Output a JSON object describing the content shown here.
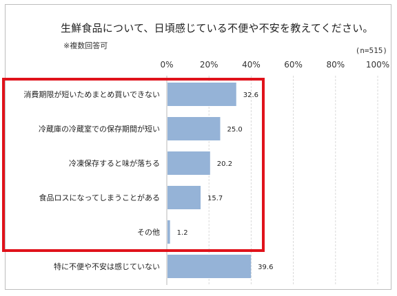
{
  "chart_data": {
    "type": "bar",
    "orientation": "horizontal",
    "title": "生鮮食品について、日頃感じている不便や不安を教えてください。",
    "note": "※複数回答可",
    "sample_size": "(n=515)",
    "categories": [
      "消費期限が短いためまとめ買いできない",
      "冷蔵庫の冷蔵室での保存期間が短い",
      "冷凍保存すると味が落ちる",
      "食品ロスになってしまうことがある",
      "その他",
      "特に不便や不安は感じていない"
    ],
    "values": [
      32.6,
      25.0,
      20.2,
      15.7,
      1.2,
      39.6
    ],
    "value_labels": [
      "32.6",
      "25.0",
      "20.2",
      "15.7",
      "1.2",
      "39.6"
    ],
    "xlim": [
      0,
      100
    ],
    "xticks": [
      0,
      20,
      40,
      60,
      80,
      100
    ],
    "xtick_labels": [
      "0%",
      "20%",
      "40%",
      "60%",
      "80%",
      "100%"
    ],
    "grid": true,
    "bar_color": "#95b3d7",
    "highlight_color": "#e0121b"
  }
}
